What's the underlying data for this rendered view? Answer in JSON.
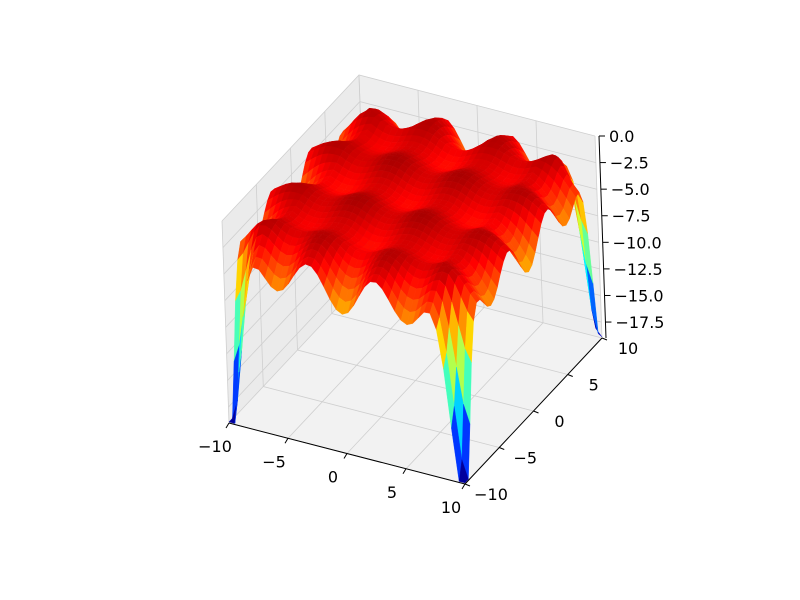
{
  "chart_data": {
    "type": "surface",
    "colormap": "jet",
    "title": "",
    "xlabel": "",
    "ylabel": "",
    "zlabel": "",
    "xlim": [
      -10,
      10
    ],
    "ylim": [
      -10,
      10
    ],
    "zlim": [
      -19,
      0
    ],
    "x_ticks": [
      "−10",
      "−5",
      "0",
      "5",
      "10"
    ],
    "y_ticks": [
      "−10",
      "−5",
      "0",
      "5",
      "10"
    ],
    "z_ticks": [
      "0.0",
      "−2.5",
      "−5.0",
      "−7.5",
      "−10.0",
      "−12.5",
      "−15.0",
      "−17.5"
    ],
    "x_tick_values": [
      -10,
      -5,
      0,
      5,
      10
    ],
    "y_tick_values": [
      -10,
      -5,
      0,
      5,
      10
    ],
    "z_tick_values": [
      0,
      -2.5,
      -5,
      -7.5,
      -10,
      -12.5,
      -15,
      -17.5
    ],
    "grid": true,
    "surface_baseline": -1.3,
    "wells": [
      {
        "x": -10,
        "y": -10,
        "z": -18.2
      },
      {
        "x": 10,
        "y": -10,
        "z": -18.4
      },
      {
        "x": 10,
        "y": 10,
        "z": -17.0
      },
      {
        "x": -10,
        "y": 10,
        "z": -16.8
      }
    ]
  }
}
